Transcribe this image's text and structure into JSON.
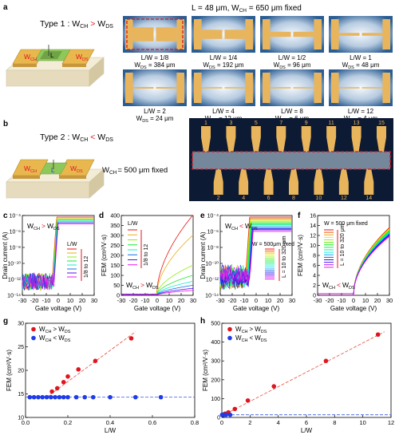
{
  "panel_letters": [
    "a",
    "b",
    "c",
    "d",
    "e",
    "f",
    "g",
    "h"
  ],
  "a": {
    "type_label": "Type 1 : W",
    "type_cmp": ">",
    "header": "L = 48 μm, W",
    "header_tail": " = 650 μm fixed",
    "L_label": "L",
    "wch": "W",
    "wds": "W",
    "sub_ch": "CH",
    "sub_ds": "DS",
    "devices": [
      {
        "lw": "L/W = 1/8",
        "wds": "W",
        "wds_val": " = 384 μm",
        "gap_frac": 0.55
      },
      {
        "lw": "L/W = 1/4",
        "wds": "W",
        "wds_val": " = 192 μm",
        "gap_frac": 0.36
      },
      {
        "lw": "L/W = 1/2",
        "wds": "W",
        "wds_val": " = 96 μm",
        "gap_frac": 0.2
      },
      {
        "lw": "L/W = 1",
        "wds": "W",
        "wds_val": " = 48 μm",
        "gap_frac": 0.11
      },
      {
        "lw": "L/W = 2",
        "wds": "W",
        "wds_val": " = 24 μm",
        "gap_frac": 0.06
      },
      {
        "lw": "L/W = 4",
        "wds": "W",
        "wds_val": " = 12 μm",
        "gap_frac": 0.035
      },
      {
        "lw": "L/W = 8",
        "wds": "W",
        "wds_val": " = 6 μm",
        "gap_frac": 0.02
      },
      {
        "lw": "L/W = 12",
        "wds": "W",
        "wds_val": " = 4 μm",
        "gap_frac": 0.012
      }
    ]
  },
  "b": {
    "type_label": "Type 2 : W",
    "type_cmp": "<",
    "fixed_label": "W",
    "fixed_tail": "= 500 μm fixed",
    "L_label": "L",
    "electrode_numbers_top": [
      "1",
      "3",
      "5",
      "7",
      "9",
      "11",
      "13",
      "15"
    ],
    "electrode_numbers_bottom": [
      "2",
      "4",
      "6",
      "8",
      "10",
      "12",
      "14"
    ]
  },
  "colors": {
    "gold": "#e8b55d",
    "gold_dark": "#c8913a",
    "substrate": "#0d1a33",
    "channel": "#9fb0be",
    "red": "#e0141e",
    "blue": "#1f3ce8",
    "fit_red": "#e74c3c",
    "fit_blue": "#3b5bdb"
  },
  "chart_data": [
    {
      "panel": "c",
      "type": "line",
      "xlabel": "Gate voltage (V)",
      "ylabel": "Drain current (A)",
      "xlim": [
        -30,
        30
      ],
      "xticks": [
        -30,
        -20,
        -10,
        0,
        10,
        20,
        30
      ],
      "yscale": "log",
      "ylim": [
        1e-14,
        0.0001
      ],
      "yticks": [
        "10⁻¹⁴",
        "10⁻¹²",
        "10⁻¹⁰",
        "10⁻⁸",
        "10⁻⁶",
        "10⁻⁴"
      ],
      "annotation": "W",
      "annotation_cmp": ">",
      "legend_title": "L/W",
      "legend_range": "1/8 to 12",
      "series_count": 8
    },
    {
      "panel": "d",
      "type": "line",
      "xlabel": "Gate voltage (V)",
      "ylabel": "FEM (cm²/V·s)",
      "xlim": [
        -30,
        30
      ],
      "xticks": [
        -30,
        -20,
        -10,
        0,
        10,
        20,
        30
      ],
      "ylim": [
        0,
        400
      ],
      "yticks": [
        0,
        50,
        100,
        150,
        200,
        250,
        300,
        350,
        400
      ],
      "annotation": "W",
      "annotation_cmp": ">",
      "legend_title": "L/W",
      "legend_range": "1/8 to 12",
      "series_count": 8,
      "peak_values": [
        400,
        300,
        150,
        100,
        70,
        50,
        35,
        25
      ]
    },
    {
      "panel": "e",
      "type": "line",
      "xlabel": "Gate voltage (V)",
      "ylabel": "Drain current (A)",
      "xlim": [
        -30,
        30
      ],
      "xticks": [
        -30,
        -20,
        -10,
        0,
        10,
        20,
        30
      ],
      "yscale": "log",
      "ylim": [
        1e-14,
        0.0001
      ],
      "yticks": [
        "10⁻¹⁴",
        "10⁻¹²",
        "10⁻¹⁰",
        "10⁻⁸",
        "10⁻⁶",
        "10⁻⁴"
      ],
      "annotation": "W",
      "annotation_cmp": "<",
      "legend_title": "W = 500μm fixed",
      "legend_range": "L = 10 to 320 μm",
      "series_count": 16
    },
    {
      "panel": "f",
      "type": "line",
      "xlabel": "Gate voltage (V)",
      "ylabel": "FEM (cm²/V·s)",
      "xlim": [
        -30,
        30
      ],
      "xticks": [
        -30,
        -20,
        -10,
        0,
        10,
        20,
        30
      ],
      "ylim": [
        0,
        16
      ],
      "yticks": [
        0,
        2,
        4,
        6,
        8,
        10,
        12,
        14,
        16
      ],
      "annotation": "W",
      "annotation_cmp": "<",
      "legend_title": "W = 500 μm fixed",
      "legend_range": "L = 10 to 320 μm",
      "series_count": 16
    },
    {
      "panel": "g",
      "type": "scatter",
      "xlabel": "L/W",
      "ylabel": "FEM (cm²/V·s)",
      "xlim": [
        0,
        0.8
      ],
      "xticks": [
        "0.0",
        "0.2",
        "0.4",
        "0.6",
        "0.8"
      ],
      "ylim": [
        10,
        30
      ],
      "yticks": [
        10,
        15,
        20,
        25,
        30
      ],
      "legend": [
        {
          "name": "W",
          "cmp": ">",
          "color": "#e0141e"
        },
        {
          "name": "W",
          "cmp": "<",
          "color": "#1f3ce8"
        }
      ],
      "series": [
        {
          "name": "W_CH > W_DS",
          "x": [
            0.125,
            0.15,
            0.18,
            0.2,
            0.25,
            0.33,
            0.5
          ],
          "y": [
            15.5,
            16.2,
            17.5,
            18.7,
            20.2,
            22.0,
            26.8
          ]
        },
        {
          "name": "W_CH < W_DS",
          "x": [
            0.02,
            0.04,
            0.06,
            0.08,
            0.1,
            0.12,
            0.14,
            0.16,
            0.18,
            0.2,
            0.24,
            0.28,
            0.32,
            0.4,
            0.52,
            0.64
          ],
          "y": [
            14.3,
            14.3,
            14.3,
            14.3,
            14.3,
            14.3,
            14.3,
            14.3,
            14.3,
            14.3,
            14.3,
            14.3,
            14.3,
            14.3,
            14.3,
            14.3
          ]
        }
      ],
      "fits": [
        {
          "color": "red",
          "x": [
            0.1,
            0.52
          ],
          "y": [
            14.3,
            28.2
          ]
        },
        {
          "color": "blue",
          "x": [
            0.0,
            0.8
          ],
          "y": [
            14.3,
            14.3
          ]
        }
      ]
    },
    {
      "panel": "h",
      "type": "scatter",
      "xlabel": "L/W",
      "ylabel": "FEM (cm²/V·s)",
      "xlim": [
        0,
        13
      ],
      "xticks": [
        0,
        2,
        4,
        6,
        8,
        10,
        12
      ],
      "ylim": [
        0,
        500
      ],
      "yticks": [
        0,
        100,
        200,
        300,
        400,
        500
      ],
      "legend": [
        {
          "name": "W",
          "cmp": ">",
          "color": "#e0141e"
        },
        {
          "name": "W",
          "cmp": "<",
          "color": "#1f3ce8"
        }
      ],
      "series": [
        {
          "name": "W_CH > W_DS",
          "x": [
            0.125,
            0.25,
            0.5,
            1,
            2,
            4,
            8,
            12
          ],
          "y": [
            15,
            20,
            27,
            45,
            90,
            165,
            300,
            440
          ]
        },
        {
          "name": "W_CH < W_DS",
          "x": [
            0.02,
            0.04,
            0.08,
            0.16,
            0.32,
            0.64
          ],
          "y": [
            14,
            14,
            14,
            14,
            14,
            14
          ]
        }
      ],
      "fits": [
        {
          "color": "red",
          "x": [
            0,
            12.5
          ],
          "y": [
            8,
            455
          ]
        },
        {
          "color": "blue",
          "x": [
            0,
            13
          ],
          "y": [
            14,
            14
          ]
        }
      ]
    }
  ]
}
